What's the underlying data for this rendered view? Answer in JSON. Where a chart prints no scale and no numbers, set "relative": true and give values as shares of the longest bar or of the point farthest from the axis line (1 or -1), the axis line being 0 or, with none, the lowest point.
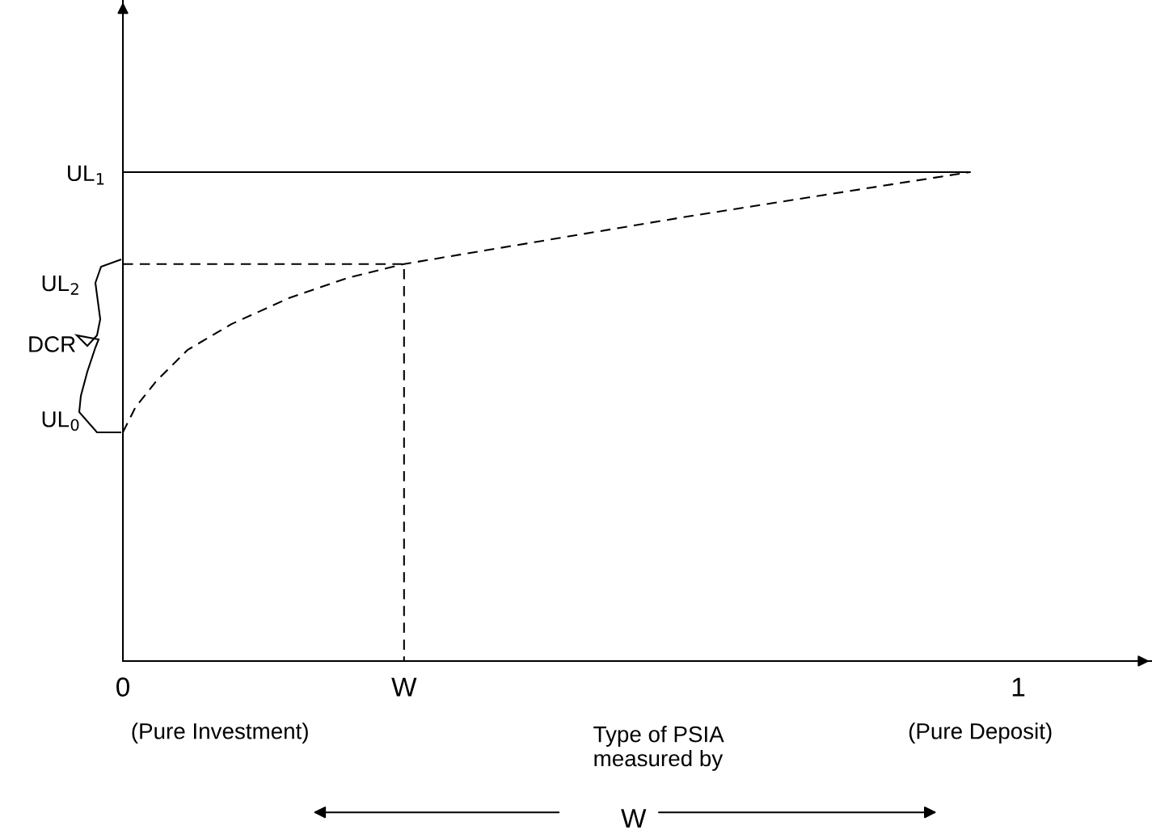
{
  "chart_data": {
    "type": "line",
    "relative": true,
    "xlabel": "Type of PSIA\nmeasured by",
    "xlim": [
      0,
      1.149
    ],
    "xticks": [
      0,
      {
        "value": 0.314,
        "label": "W"
      },
      1
    ],
    "grid": false,
    "legend": false,
    "marker": "none",
    "series": [
      {
        "color": "#000000",
        "line_style": "solid",
        "x": [
          0,
          0.946
        ],
        "values": [
          1,
          1
        ]
      },
      {
        "color": "#000000",
        "line_style": "dashed",
        "x": [
          0,
          0.014,
          0.037,
          0.072,
          0.121,
          0.185,
          0.25,
          0.314,
          0.63,
          0.946
        ],
        "values": [
          0.468,
          0.519,
          0.572,
          0.636,
          0.689,
          0.742,
          0.783,
          0.812,
          0.909,
          1
        ]
      },
      {
        "color": "#000000",
        "line_style": "dashed",
        "x": [
          0,
          0.314,
          0.314
        ],
        "values": [
          0.812,
          0.812,
          0
        ]
      }
    ],
    "annotations": [
      "UL$_{1}$",
      "UL$_{2}$",
      "UL$_{0}$",
      "DCR",
      "(Pure Investment)",
      "(Pure Deposit)",
      "W"
    ]
  }
}
